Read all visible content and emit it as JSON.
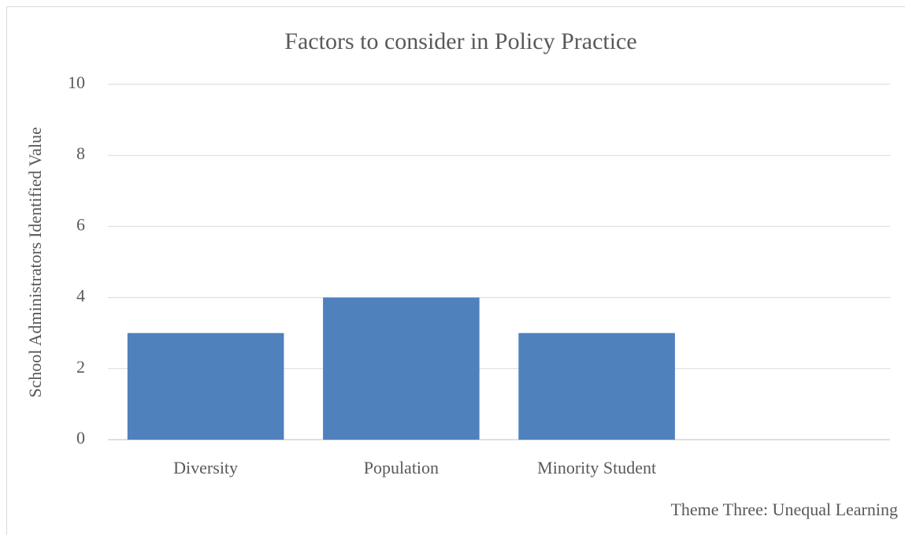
{
  "chart_data": {
    "type": "bar",
    "title": "Factors to consider in Policy Practice",
    "y_label": "School Administrators Identified Value",
    "x_label": "Theme Three: Unequal Learning",
    "categories": [
      "Diversity",
      "Population",
      "Minority Student",
      null
    ],
    "values": [
      3,
      4,
      3,
      null
    ],
    "color": "#4f81bd",
    "ylim": [
      0,
      10
    ],
    "yticks": [
      0,
      2,
      4,
      6,
      8,
      10
    ],
    "grid": true
  }
}
